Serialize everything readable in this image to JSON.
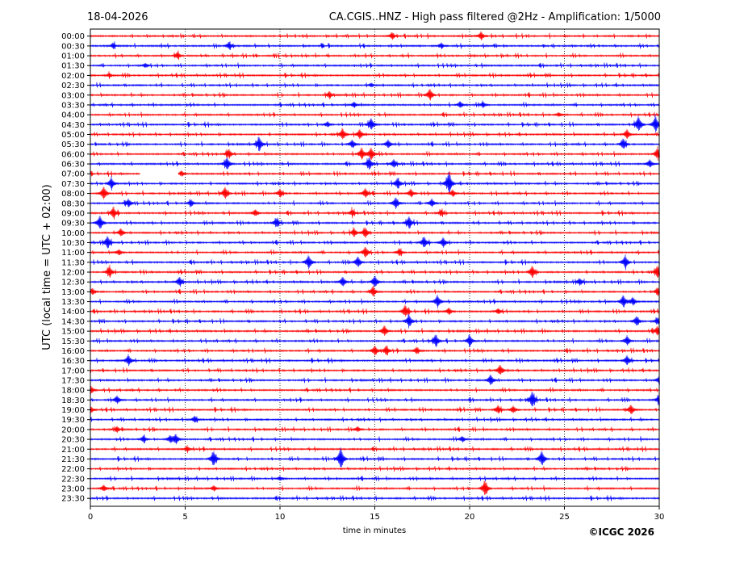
{
  "chart_data": {
    "type": "line",
    "title_left": "18-04-2026",
    "title_right": "CA.CGIS..HNZ - High pass filtered @2Hz - Amplification: 1/5000",
    "xlabel": "time in minutes",
    "ylabel": "UTC (local time = UTC + 02:00)",
    "xlim": [
      0,
      30
    ],
    "x_ticks": [
      "0",
      "5",
      "10",
      "15",
      "20",
      "25",
      "30"
    ],
    "x_tick_values": [
      0,
      5,
      10,
      15,
      20,
      25,
      30
    ],
    "vertical_gridlines_minutes": [
      5,
      10,
      15,
      20,
      25
    ],
    "series": [
      {
        "color": "#ff0000",
        "rows": "full hours"
      },
      {
        "color": "#0000ff",
        "rows": "half hours"
      }
    ],
    "traces": [
      {
        "label": "00:00",
        "events": [
          [
            15.9,
            0.5
          ],
          [
            20.6,
            0.6
          ]
        ]
      },
      {
        "label": "00:30",
        "events": [
          [
            1.2,
            0.4
          ],
          [
            7.3,
            0.5
          ],
          [
            18.5,
            0.4
          ]
        ]
      },
      {
        "label": "01:00",
        "events": [
          [
            4.6,
            0.5
          ]
        ]
      },
      {
        "label": "01:30",
        "events": [
          [
            2.9,
            0.3
          ]
        ]
      },
      {
        "label": "02:00",
        "events": [
          [
            1.0,
            0.3
          ]
        ]
      },
      {
        "label": "02:30",
        "events": [
          [
            14.8,
            0.3
          ]
        ]
      },
      {
        "label": "03:00",
        "events": [
          [
            12.6,
            0.5
          ],
          [
            17.9,
            0.9
          ]
        ]
      },
      {
        "label": "03:30",
        "events": [
          [
            13.9,
            0.4
          ],
          [
            19.5,
            0.5
          ],
          [
            20.7,
            0.4
          ]
        ]
      },
      {
        "label": "04:00",
        "events": [
          [
            24.7,
            0.3
          ]
        ]
      },
      {
        "label": "04:30",
        "events": [
          [
            12.5,
            0.4
          ],
          [
            14.8,
            0.9
          ],
          [
            28.9,
            1.2
          ],
          [
            29.8,
            1.2
          ]
        ]
      },
      {
        "label": "05:00",
        "events": [
          [
            13.3,
            0.8
          ],
          [
            14.2,
            0.7
          ],
          [
            28.3,
            0.7
          ]
        ]
      },
      {
        "label": "05:30",
        "events": [
          [
            8.9,
            1.0
          ],
          [
            13.8,
            0.6
          ],
          [
            15.7,
            0.6
          ],
          [
            28.1,
            0.8
          ]
        ]
      },
      {
        "label": "06:00",
        "events": [
          [
            7.3,
            0.7
          ],
          [
            14.3,
            0.9
          ],
          [
            14.8,
            0.9
          ],
          [
            29.9,
            0.8
          ]
        ]
      },
      {
        "label": "06:30",
        "events": [
          [
            7.2,
            0.9
          ],
          [
            14.7,
            0.9
          ],
          [
            16.0,
            0.6
          ],
          [
            29.5,
            0.6
          ]
        ]
      },
      {
        "label": "07:00",
        "events": [
          [
            4.8,
            0.4
          ]
        ],
        "gaps": [
          [
            2.6,
            4.6
          ]
        ]
      },
      {
        "label": "07:30",
        "events": [
          [
            1.1,
            0.8
          ],
          [
            16.2,
            0.8
          ],
          [
            18.9,
            1.6
          ]
        ]
      },
      {
        "label": "08:00",
        "events": [
          [
            0.7,
            1.0
          ],
          [
            7.1,
            0.9
          ],
          [
            10.0,
            0.6
          ],
          [
            14.5,
            0.7
          ],
          [
            16.9,
            0.6
          ],
          [
            19.1,
            0.5
          ]
        ]
      },
      {
        "label": "08:30",
        "events": [
          [
            2.0,
            0.6
          ],
          [
            5.3,
            0.5
          ],
          [
            16.1,
            0.8
          ],
          [
            18.0,
            0.6
          ]
        ]
      },
      {
        "label": "09:00",
        "events": [
          [
            1.2,
            0.8
          ],
          [
            8.7,
            0.5
          ],
          [
            13.8,
            0.5
          ],
          [
            18.5,
            0.4
          ]
        ]
      },
      {
        "label": "09:30",
        "events": [
          [
            0.5,
            1.0
          ],
          [
            9.8,
            0.6
          ],
          [
            16.8,
            0.9
          ]
        ]
      },
      {
        "label": "10:00",
        "events": [
          [
            1.6,
            0.6
          ],
          [
            13.9,
            0.6
          ],
          [
            14.5,
            0.7
          ]
        ]
      },
      {
        "label": "10:30",
        "events": [
          [
            0.9,
            0.9
          ],
          [
            17.6,
            0.8
          ],
          [
            18.6,
            0.7
          ]
        ]
      },
      {
        "label": "11:00",
        "events": [
          [
            1.5,
            0.4
          ],
          [
            14.5,
            0.8
          ],
          [
            16.3,
            0.5
          ]
        ]
      },
      {
        "label": "11:30",
        "events": [
          [
            11.5,
            1.0
          ],
          [
            14.1,
            0.8
          ],
          [
            28.2,
            0.9
          ]
        ]
      },
      {
        "label": "12:00",
        "events": [
          [
            1.0,
            0.8
          ],
          [
            23.3,
            0.9
          ],
          [
            29.9,
            0.9
          ]
        ]
      },
      {
        "label": "12:30",
        "events": [
          [
            4.7,
            0.7
          ],
          [
            13.3,
            0.7
          ],
          [
            15.0,
            0.9
          ],
          [
            25.8,
            0.5
          ]
        ]
      },
      {
        "label": "13:00",
        "events": [
          [
            0.1,
            0.5
          ],
          [
            14.9,
            0.7
          ],
          [
            29.9,
            0.6
          ]
        ]
      },
      {
        "label": "13:30",
        "events": [
          [
            18.3,
            0.9
          ],
          [
            28.1,
            0.9
          ],
          [
            28.6,
            0.6
          ]
        ]
      },
      {
        "label": "14:00",
        "events": [
          [
            16.6,
            0.9
          ],
          [
            18.9,
            0.5
          ],
          [
            21.5,
            0.4
          ]
        ]
      },
      {
        "label": "14:30",
        "events": [
          [
            16.8,
            0.9
          ],
          [
            28.8,
            0.7
          ],
          [
            29.9,
            0.5
          ]
        ]
      },
      {
        "label": "15:00",
        "events": [
          [
            15.5,
            0.8
          ],
          [
            29.9,
            0.7
          ]
        ]
      },
      {
        "label": "15:30",
        "events": [
          [
            18.2,
            0.9
          ],
          [
            20.0,
            0.8
          ],
          [
            28.3,
            0.7
          ]
        ]
      },
      {
        "label": "16:00",
        "events": [
          [
            15.0,
            0.7
          ],
          [
            15.6,
            0.7
          ],
          [
            17.2,
            0.5
          ]
        ]
      },
      {
        "label": "16:30",
        "events": [
          [
            2.0,
            0.8
          ],
          [
            28.3,
            0.7
          ]
        ]
      },
      {
        "label": "17:00",
        "events": [
          [
            21.6,
            0.8
          ]
        ]
      },
      {
        "label": "17:30",
        "events": [
          [
            21.1,
            0.8
          ],
          [
            30.0,
            0.6
          ]
        ]
      },
      {
        "label": "18:00",
        "events": [
          [
            0.0,
            0.7
          ]
        ]
      },
      {
        "label": "18:30",
        "events": [
          [
            1.4,
            0.6
          ],
          [
            23.3,
            1.2
          ],
          [
            30.0,
            0.8
          ]
        ]
      },
      {
        "label": "19:00",
        "events": [
          [
            0.0,
            0.5
          ],
          [
            21.5,
            0.6
          ],
          [
            22.3,
            0.5
          ],
          [
            28.5,
            0.7
          ]
        ]
      },
      {
        "label": "19:30",
        "events": [
          [
            5.5,
            0.5
          ]
        ]
      },
      {
        "label": "20:00",
        "events": [
          [
            1.4,
            0.4
          ],
          [
            14.1,
            0.4
          ]
        ]
      },
      {
        "label": "20:30",
        "events": [
          [
            2.8,
            0.5
          ],
          [
            4.2,
            0.5
          ],
          [
            4.5,
            0.7
          ],
          [
            19.6,
            0.4
          ]
        ]
      },
      {
        "label": "21:00",
        "events": [
          [
            5.1,
            0.4
          ]
        ]
      },
      {
        "label": "21:30",
        "events": [
          [
            6.5,
            1.1
          ],
          [
            13.2,
            1.6
          ],
          [
            23.8,
            1.1
          ]
        ]
      },
      {
        "label": "22:00",
        "events": []
      },
      {
        "label": "22:30",
        "events": [
          [
            10.0,
            0.3
          ]
        ]
      },
      {
        "label": "23:00",
        "events": [
          [
            0.7,
            0.5
          ],
          [
            6.5,
            0.4
          ],
          [
            20.8,
            1.1
          ]
        ]
      },
      {
        "label": "23:30",
        "events": []
      }
    ]
  },
  "copyright": "©ICGC 2026"
}
